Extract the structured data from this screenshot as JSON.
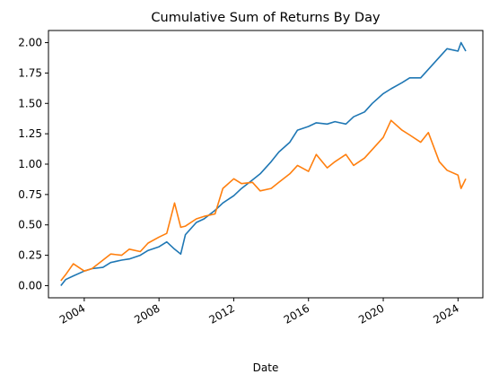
{
  "chart_data": {
    "type": "line",
    "title": "Cumulative Sum of Returns By Day",
    "xlabel": "Date",
    "ylabel": "",
    "xlim": [
      "2002-02-01",
      "2025-05-01"
    ],
    "ylim": [
      -0.1,
      2.1
    ],
    "grid": false,
    "x_ticks": [
      "2004",
      "2008",
      "2012",
      "2016",
      "2020",
      "2024"
    ],
    "y_ticks": [
      "0.00",
      "0.25",
      "0.50",
      "0.75",
      "1.00",
      "1.25",
      "1.50",
      "1.75",
      "2.00"
    ],
    "series": [
      {
        "color": "#1f77b4",
        "x": [
          "2002-10-01",
          "2003-01-01",
          "2003-06-01",
          "2004-01-01",
          "2004-06-01",
          "2005-01-01",
          "2005-06-01",
          "2006-01-01",
          "2006-06-01",
          "2007-01-01",
          "2007-06-01",
          "2008-01-01",
          "2008-06-01",
          "2008-11-01",
          "2009-03-01",
          "2009-06-01",
          "2010-01-01",
          "2010-06-01",
          "2011-01-01",
          "2011-06-01",
          "2012-01-01",
          "2012-06-01",
          "2013-01-01",
          "2013-06-01",
          "2014-01-01",
          "2014-06-01",
          "2015-01-01",
          "2015-06-01",
          "2016-01-01",
          "2016-06-01",
          "2017-01-01",
          "2017-06-01",
          "2018-01-01",
          "2018-06-01",
          "2019-01-01",
          "2019-06-01",
          "2020-01-01",
          "2020-06-01",
          "2021-01-01",
          "2021-06-01",
          "2022-01-01",
          "2022-06-01",
          "2023-01-01",
          "2023-06-01",
          "2024-01-01",
          "2024-03-01",
          "2024-06-01"
        ],
        "values": [
          0.0,
          0.05,
          0.08,
          0.12,
          0.14,
          0.15,
          0.19,
          0.21,
          0.22,
          0.25,
          0.29,
          0.32,
          0.36,
          0.3,
          0.26,
          0.42,
          0.52,
          0.55,
          0.62,
          0.68,
          0.74,
          0.8,
          0.87,
          0.92,
          1.02,
          1.1,
          1.18,
          1.28,
          1.31,
          1.34,
          1.33,
          1.35,
          1.33,
          1.39,
          1.43,
          1.5,
          1.58,
          1.62,
          1.67,
          1.71,
          1.71,
          1.78,
          1.88,
          1.95,
          1.93,
          2.0,
          1.93
        ]
      },
      {
        "color": "#ff7f0e",
        "x": [
          "2002-10-01",
          "2003-01-01",
          "2003-06-01",
          "2004-01-01",
          "2004-06-01",
          "2005-01-01",
          "2005-06-01",
          "2006-01-01",
          "2006-06-01",
          "2007-01-01",
          "2007-06-01",
          "2008-01-01",
          "2008-06-01",
          "2008-11-01",
          "2009-03-01",
          "2009-06-01",
          "2010-01-01",
          "2010-06-01",
          "2011-01-01",
          "2011-06-01",
          "2012-01-01",
          "2012-06-01",
          "2013-01-01",
          "2013-06-01",
          "2014-01-01",
          "2014-06-01",
          "2015-01-01",
          "2015-06-01",
          "2016-01-01",
          "2016-06-01",
          "2017-01-01",
          "2017-06-01",
          "2018-01-01",
          "2018-06-01",
          "2019-01-01",
          "2019-06-01",
          "2020-01-01",
          "2020-06-01",
          "2021-01-01",
          "2021-06-01",
          "2022-01-01",
          "2022-06-01",
          "2023-01-01",
          "2023-06-01",
          "2024-01-01",
          "2024-03-01",
          "2024-06-01"
        ],
        "values": [
          0.04,
          0.09,
          0.18,
          0.12,
          0.14,
          0.21,
          0.26,
          0.25,
          0.3,
          0.28,
          0.35,
          0.4,
          0.43,
          0.68,
          0.48,
          0.49,
          0.55,
          0.57,
          0.59,
          0.8,
          0.88,
          0.84,
          0.85,
          0.78,
          0.8,
          0.85,
          0.92,
          0.99,
          0.94,
          1.08,
          0.97,
          1.02,
          1.08,
          0.99,
          1.05,
          1.12,
          1.22,
          1.36,
          1.28,
          1.24,
          1.18,
          1.26,
          1.02,
          0.95,
          0.91,
          0.8,
          0.88
        ]
      }
    ]
  }
}
